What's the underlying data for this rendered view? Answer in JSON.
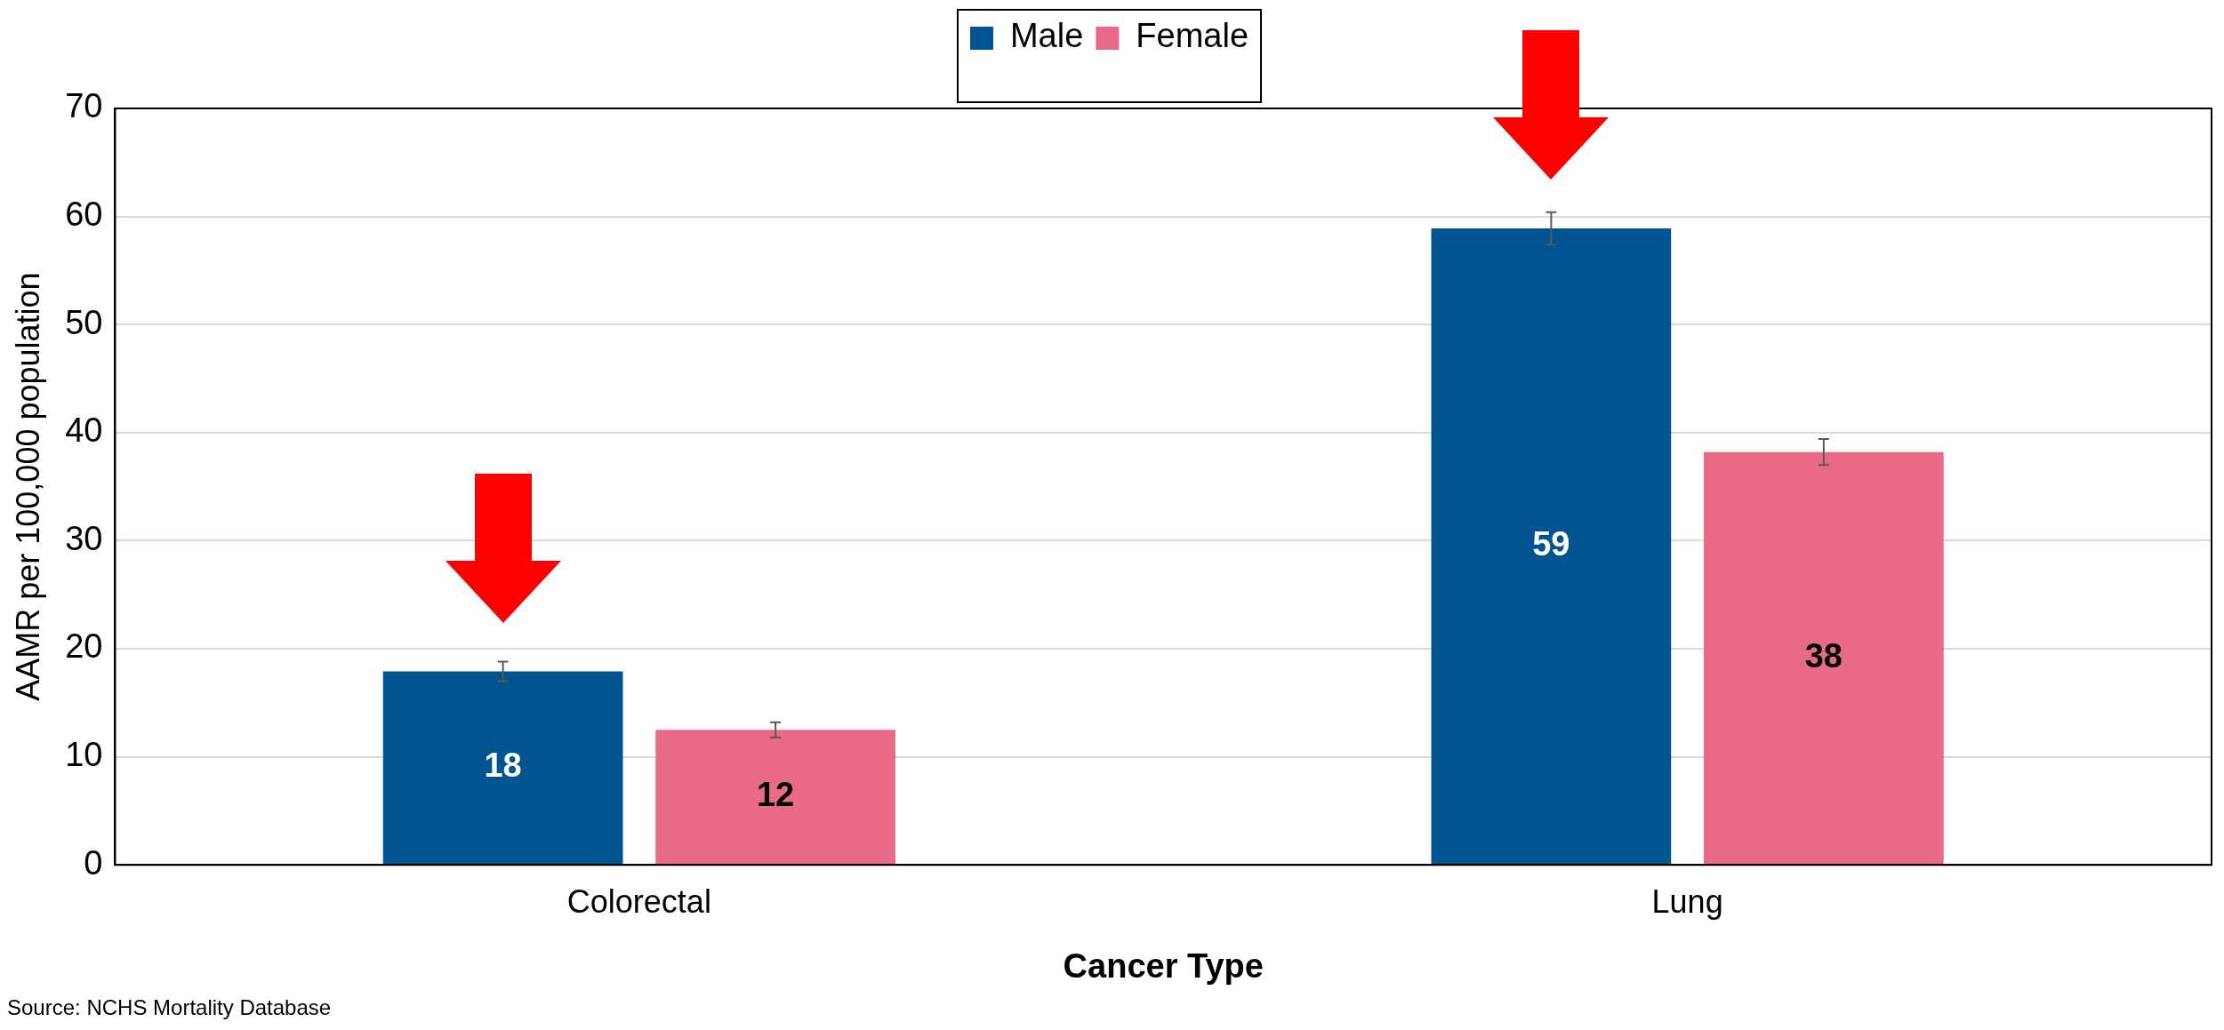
{
  "chart_data": {
    "type": "bar",
    "xlabel": "Cancer Type",
    "ylabel": "AAMR per 100,000 population",
    "categories": [
      "Colorectal",
      "Lung"
    ],
    "series": [
      {
        "name": "Male",
        "color": "#00548f",
        "values": [
          17.9,
          58.9
        ],
        "errors": [
          0.9,
          1.5
        ],
        "value_labels": [
          "18",
          "59"
        ]
      },
      {
        "name": "Female",
        "color": "#e86a86",
        "values": [
          12.5,
          38.2
        ],
        "errors": [
          0.7,
          1.2
        ],
        "value_labels": [
          "12",
          "38"
        ]
      }
    ],
    "ylim": [
      0,
      70
    ],
    "yticks": [
      0,
      10,
      20,
      30,
      40,
      50,
      60,
      70
    ],
    "grid": "y",
    "legend": "top",
    "annotations": [
      "Source: NCHS Mortality Database"
    ]
  }
}
